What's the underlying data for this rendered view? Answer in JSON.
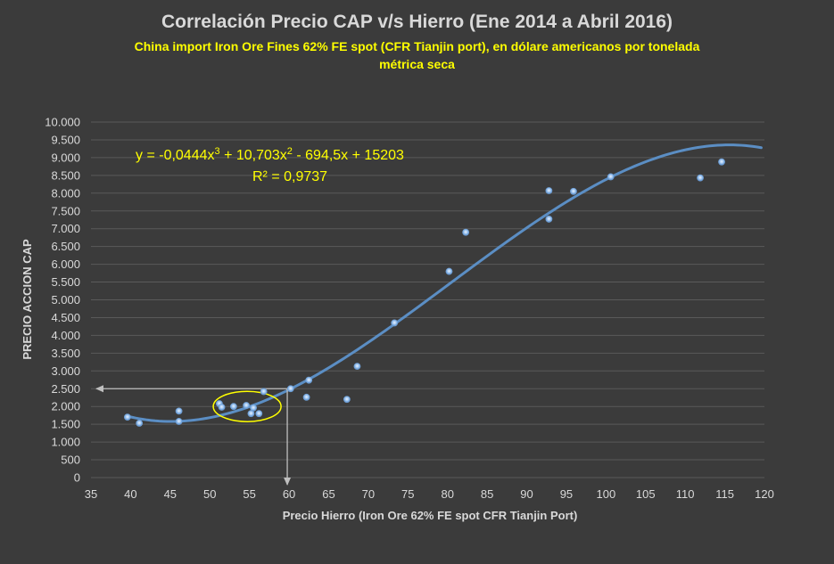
{
  "title": "Correlación Precio CAP v/s Hierro (Ene 2014 a Abril 2016)",
  "subtitle_line1": "China import Iron Ore Fines 62% FE spot (CFR Tianjin port), en dólare americanos por tonelada",
  "subtitle_line2": "métrica seca",
  "colors": {
    "background": "#3b3b3b",
    "gridline": "#5a5a5a",
    "point": "#4f86c6",
    "trendline": "#5b8ec4",
    "annotation_text": "#ffff00",
    "arrow": "#bfbfbf"
  },
  "chart_data": {
    "type": "scatter",
    "title": "Correlación Precio CAP v/s Hierro (Ene 2014 a Abril 2016)",
    "xlabel": "Precio Hierro (Iron Ore 62% FE spot CFR Tianjin Port)",
    "ylabel": "PRECIO ACCION CAP",
    "xlim": [
      35,
      120
    ],
    "ylim": [
      0,
      10000
    ],
    "x_ticks": [
      35,
      40,
      45,
      50,
      55,
      60,
      65,
      70,
      75,
      80,
      85,
      90,
      95,
      100,
      105,
      110,
      115,
      120
    ],
    "y_ticks": [
      0,
      500,
      1000,
      1500,
      2000,
      2500,
      3000,
      3500,
      4000,
      4500,
      5000,
      5500,
      6000,
      6500,
      7000,
      7500,
      8000,
      8500,
      9000,
      9500,
      10000
    ],
    "y_tick_labels": [
      "0",
      "500",
      "1.000",
      "1.500",
      "2.000",
      "2.500",
      "3.000",
      "3.500",
      "4.000",
      "4.500",
      "5.000",
      "5.500",
      "6.000",
      "6.500",
      "7.000",
      "7.500",
      "8.000",
      "8.500",
      "9.000",
      "9.500",
      "10.000"
    ],
    "grid": true,
    "points": [
      {
        "x": 39.6,
        "y": 1700
      },
      {
        "x": 41.1,
        "y": 1530
      },
      {
        "x": 46.1,
        "y": 1870
      },
      {
        "x": 46.1,
        "y": 1580
      },
      {
        "x": 51.2,
        "y": 2080
      },
      {
        "x": 51.5,
        "y": 1980
      },
      {
        "x": 53.0,
        "y": 2000
      },
      {
        "x": 54.6,
        "y": 2030
      },
      {
        "x": 55.2,
        "y": 1800
      },
      {
        "x": 55.5,
        "y": 1960
      },
      {
        "x": 56.2,
        "y": 1800
      },
      {
        "x": 56.8,
        "y": 2420
      },
      {
        "x": 60.2,
        "y": 2500
      },
      {
        "x": 62.2,
        "y": 2260
      },
      {
        "x": 62.5,
        "y": 2740
      },
      {
        "x": 67.3,
        "y": 2200
      },
      {
        "x": 68.6,
        "y": 3130
      },
      {
        "x": 73.3,
        "y": 4350
      },
      {
        "x": 80.2,
        "y": 5800
      },
      {
        "x": 82.3,
        "y": 6900
      },
      {
        "x": 92.8,
        "y": 7270
      },
      {
        "x": 92.8,
        "y": 8070
      },
      {
        "x": 95.9,
        "y": 8050
      },
      {
        "x": 100.6,
        "y": 8460
      },
      {
        "x": 111.9,
        "y": 8430
      },
      {
        "x": 114.6,
        "y": 8880
      }
    ],
    "trendline": {
      "type": "polynomial",
      "coefficients": [
        -0.0444,
        10.703,
        -694.5,
        15203
      ],
      "x_range": [
        39.6,
        120
      ]
    },
    "equation_text": "y = -0,0444x3 + 10,703x2 - 694,5x + 15203",
    "r_squared_text": "R² = 0,9737",
    "reference_value": {
      "x": 60,
      "y": 2500
    },
    "highlight_ellipse": {
      "center_x": 54.6,
      "center_y": 2000
    }
  }
}
